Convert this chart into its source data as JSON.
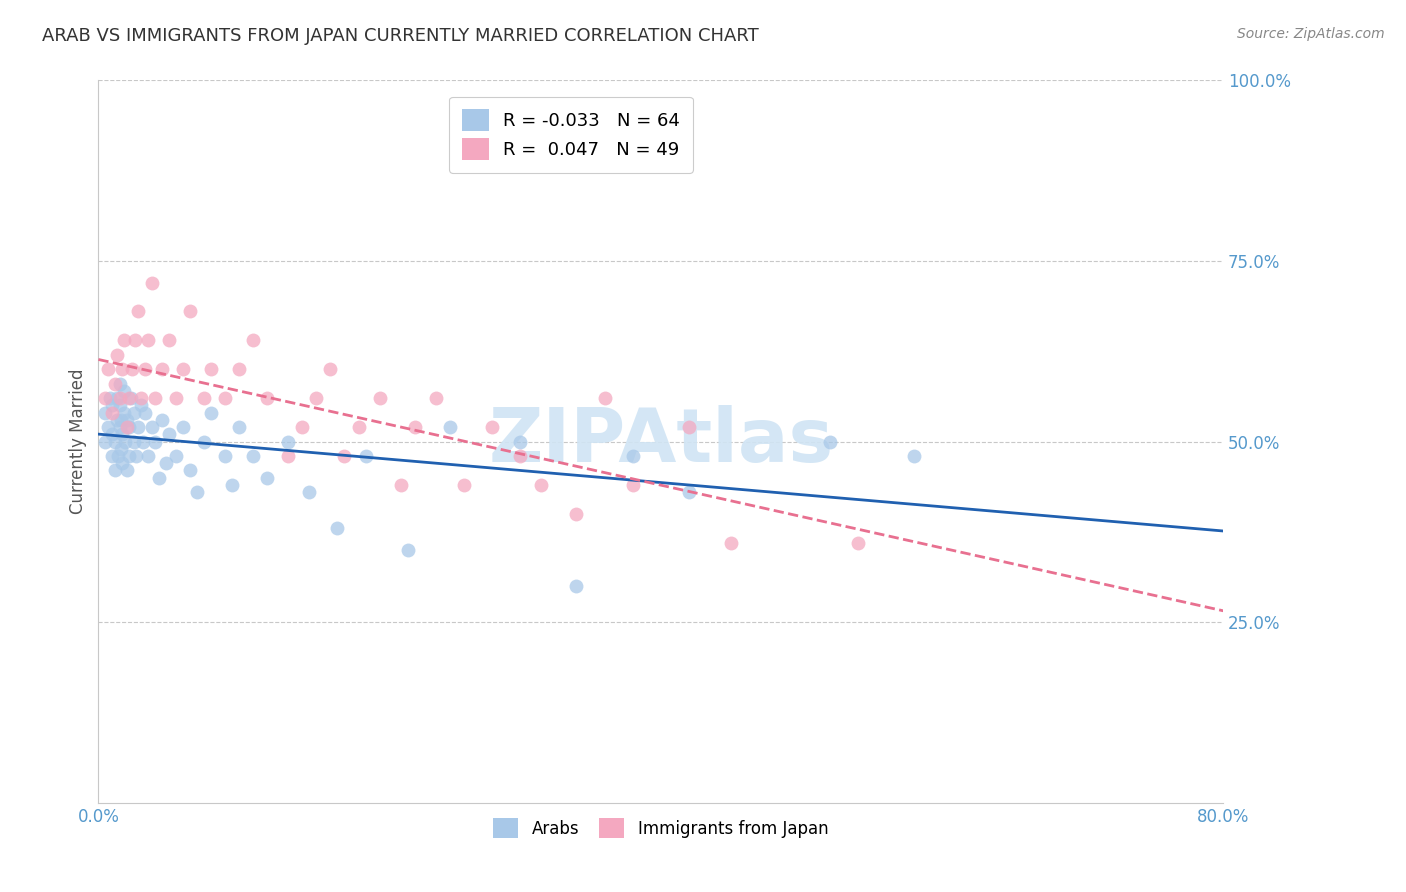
{
  "title": "ARAB VS IMMIGRANTS FROM JAPAN CURRENTLY MARRIED CORRELATION CHART",
  "source": "Source: ZipAtlas.com",
  "ylabel": "Currently Married",
  "legend_arab_r": "-0.033",
  "legend_arab_n": "64",
  "legend_japan_r": "0.047",
  "legend_japan_n": "49",
  "arab_color": "#a8c8e8",
  "japan_color": "#f4a8c0",
  "arab_line_color": "#2060b0",
  "japan_line_color": "#e87090",
  "background_color": "#ffffff",
  "grid_color": "#c8c8c8",
  "title_color": "#333333",
  "axis_label_color": "#5599cc",
  "watermark_color": "#d0e4f4",
  "arab_scatter_x": [
    0.005,
    0.005,
    0.007,
    0.008,
    0.01,
    0.01,
    0.01,
    0.012,
    0.012,
    0.013,
    0.013,
    0.014,
    0.015,
    0.015,
    0.015,
    0.016,
    0.016,
    0.017,
    0.017,
    0.018,
    0.018,
    0.019,
    0.02,
    0.02,
    0.022,
    0.022,
    0.023,
    0.025,
    0.025,
    0.027,
    0.028,
    0.03,
    0.032,
    0.033,
    0.035,
    0.038,
    0.04,
    0.043,
    0.045,
    0.048,
    0.05,
    0.055,
    0.06,
    0.065,
    0.07,
    0.075,
    0.08,
    0.09,
    0.095,
    0.1,
    0.11,
    0.12,
    0.135,
    0.15,
    0.17,
    0.19,
    0.22,
    0.25,
    0.3,
    0.34,
    0.38,
    0.42,
    0.52,
    0.58
  ],
  "arab_scatter_y": [
    0.5,
    0.54,
    0.52,
    0.56,
    0.48,
    0.51,
    0.55,
    0.46,
    0.5,
    0.53,
    0.56,
    0.48,
    0.52,
    0.55,
    0.58,
    0.49,
    0.53,
    0.47,
    0.51,
    0.54,
    0.57,
    0.5,
    0.46,
    0.53,
    0.48,
    0.52,
    0.56,
    0.5,
    0.54,
    0.48,
    0.52,
    0.55,
    0.5,
    0.54,
    0.48,
    0.52,
    0.5,
    0.45,
    0.53,
    0.47,
    0.51,
    0.48,
    0.52,
    0.46,
    0.43,
    0.5,
    0.54,
    0.48,
    0.44,
    0.52,
    0.48,
    0.45,
    0.5,
    0.43,
    0.38,
    0.48,
    0.35,
    0.52,
    0.5,
    0.3,
    0.48,
    0.43,
    0.5,
    0.48
  ],
  "japan_scatter_x": [
    0.005,
    0.007,
    0.01,
    0.012,
    0.013,
    0.015,
    0.017,
    0.018,
    0.02,
    0.022,
    0.024,
    0.026,
    0.028,
    0.03,
    0.033,
    0.035,
    0.038,
    0.04,
    0.045,
    0.05,
    0.055,
    0.06,
    0.065,
    0.075,
    0.08,
    0.09,
    0.1,
    0.11,
    0.12,
    0.135,
    0.145,
    0.155,
    0.165,
    0.175,
    0.185,
    0.2,
    0.215,
    0.225,
    0.24,
    0.26,
    0.28,
    0.3,
    0.315,
    0.34,
    0.36,
    0.38,
    0.42,
    0.45,
    0.54
  ],
  "japan_scatter_y": [
    0.56,
    0.6,
    0.54,
    0.58,
    0.62,
    0.56,
    0.6,
    0.64,
    0.52,
    0.56,
    0.6,
    0.64,
    0.68,
    0.56,
    0.6,
    0.64,
    0.72,
    0.56,
    0.6,
    0.64,
    0.56,
    0.6,
    0.68,
    0.56,
    0.6,
    0.56,
    0.6,
    0.64,
    0.56,
    0.48,
    0.52,
    0.56,
    0.6,
    0.48,
    0.52,
    0.56,
    0.44,
    0.52,
    0.56,
    0.44,
    0.52,
    0.48,
    0.44,
    0.4,
    0.56,
    0.44,
    0.52,
    0.36,
    0.36
  ]
}
